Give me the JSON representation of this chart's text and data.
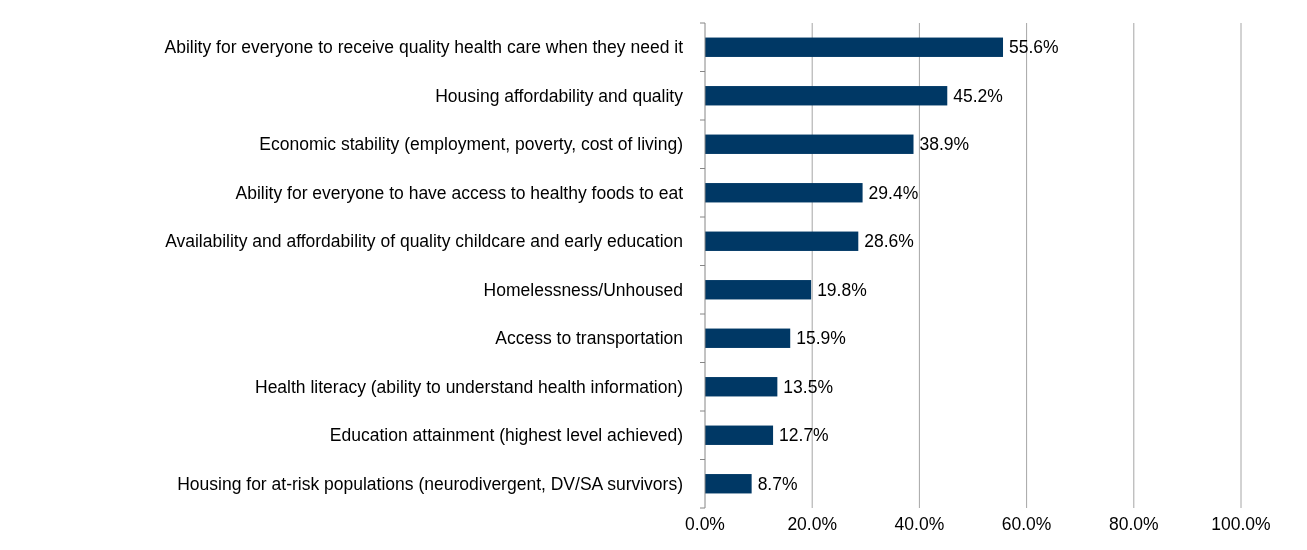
{
  "chart_data": {
    "type": "bar",
    "orientation": "horizontal",
    "categories": [
      "Ability for everyone to receive quality health care when they need it",
      "Housing affordability and quality",
      "Economic stability (employment, poverty, cost of living)",
      "Ability for everyone to have access to healthy foods to eat",
      "Availability and affordability of quality childcare and early education",
      "Homelessness/Unhoused",
      "Access to transportation",
      "Health literacy (ability to understand health information)",
      "Education attainment (highest level achieved)",
      "Housing for at-risk populations (neurodivergent, DV/SA survivors)"
    ],
    "values": [
      55.6,
      45.2,
      38.9,
      29.4,
      28.6,
      19.8,
      15.9,
      13.5,
      12.7,
      8.7
    ],
    "value_labels": [
      "55.6%",
      "45.2%",
      "38.9%",
      "29.4%",
      "28.6%",
      "19.8%",
      "15.9%",
      "13.5%",
      "12.7%",
      "8.7%"
    ],
    "color": "#003865",
    "xlim": [
      0,
      100
    ],
    "xticks": [
      {
        "value": 0,
        "label": "0.0%"
      },
      {
        "value": 20,
        "label": "20.0%"
      },
      {
        "value": 40,
        "label": "40.0%"
      },
      {
        "value": 60,
        "label": "60.0%"
      },
      {
        "value": 80,
        "label": "80.0%"
      },
      {
        "value": 100,
        "label": "100.0%"
      }
    ],
    "grid": "x"
  }
}
